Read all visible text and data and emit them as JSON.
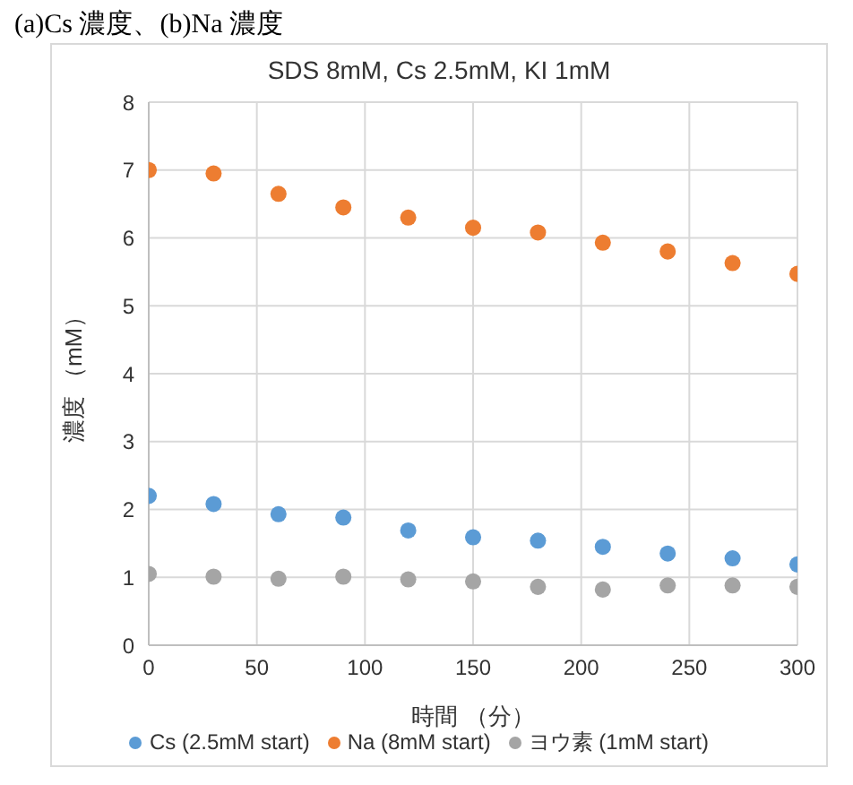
{
  "chart_data": {
    "type": "scatter",
    "title": "SDS 8mM, Cs 2.5mM, KI 1mM",
    "xlabel": "時間 （分）",
    "ylabel": "濃度 （mM）",
    "annotations": [
      "(a)Cs 濃度、(b)Na 濃度"
    ],
    "x": [
      0,
      30,
      60,
      90,
      120,
      150,
      180,
      210,
      240,
      270,
      300
    ],
    "series": [
      {
        "name": "Cs (2.5mM start)",
        "color": "#5b9bd5",
        "values": [
          2.2,
          2.08,
          1.93,
          1.88,
          1.69,
          1.59,
          1.54,
          1.45,
          1.35,
          1.28,
          1.19
        ]
      },
      {
        "name": "Na (8mM start)",
        "color": "#ed7d31",
        "values": [
          7.0,
          6.95,
          6.65,
          6.45,
          6.3,
          6.15,
          6.08,
          5.93,
          5.8,
          5.63,
          5.47
        ]
      },
      {
        "name": "ヨウ素 (1mM start)",
        "color": "#a5a5a5",
        "values": [
          1.05,
          1.01,
          0.98,
          1.01,
          0.97,
          0.94,
          0.86,
          0.82,
          0.88,
          0.88,
          0.86
        ]
      }
    ],
    "xlim": [
      0,
      300
    ],
    "xticks": [
      0,
      50,
      100,
      150,
      200,
      250,
      300
    ],
    "ylim": [
      0,
      8
    ],
    "yticks": [
      0,
      1,
      2,
      3,
      4,
      5,
      6,
      7,
      8
    ],
    "grid": true,
    "legend": "bottom",
    "marker": "circle"
  }
}
